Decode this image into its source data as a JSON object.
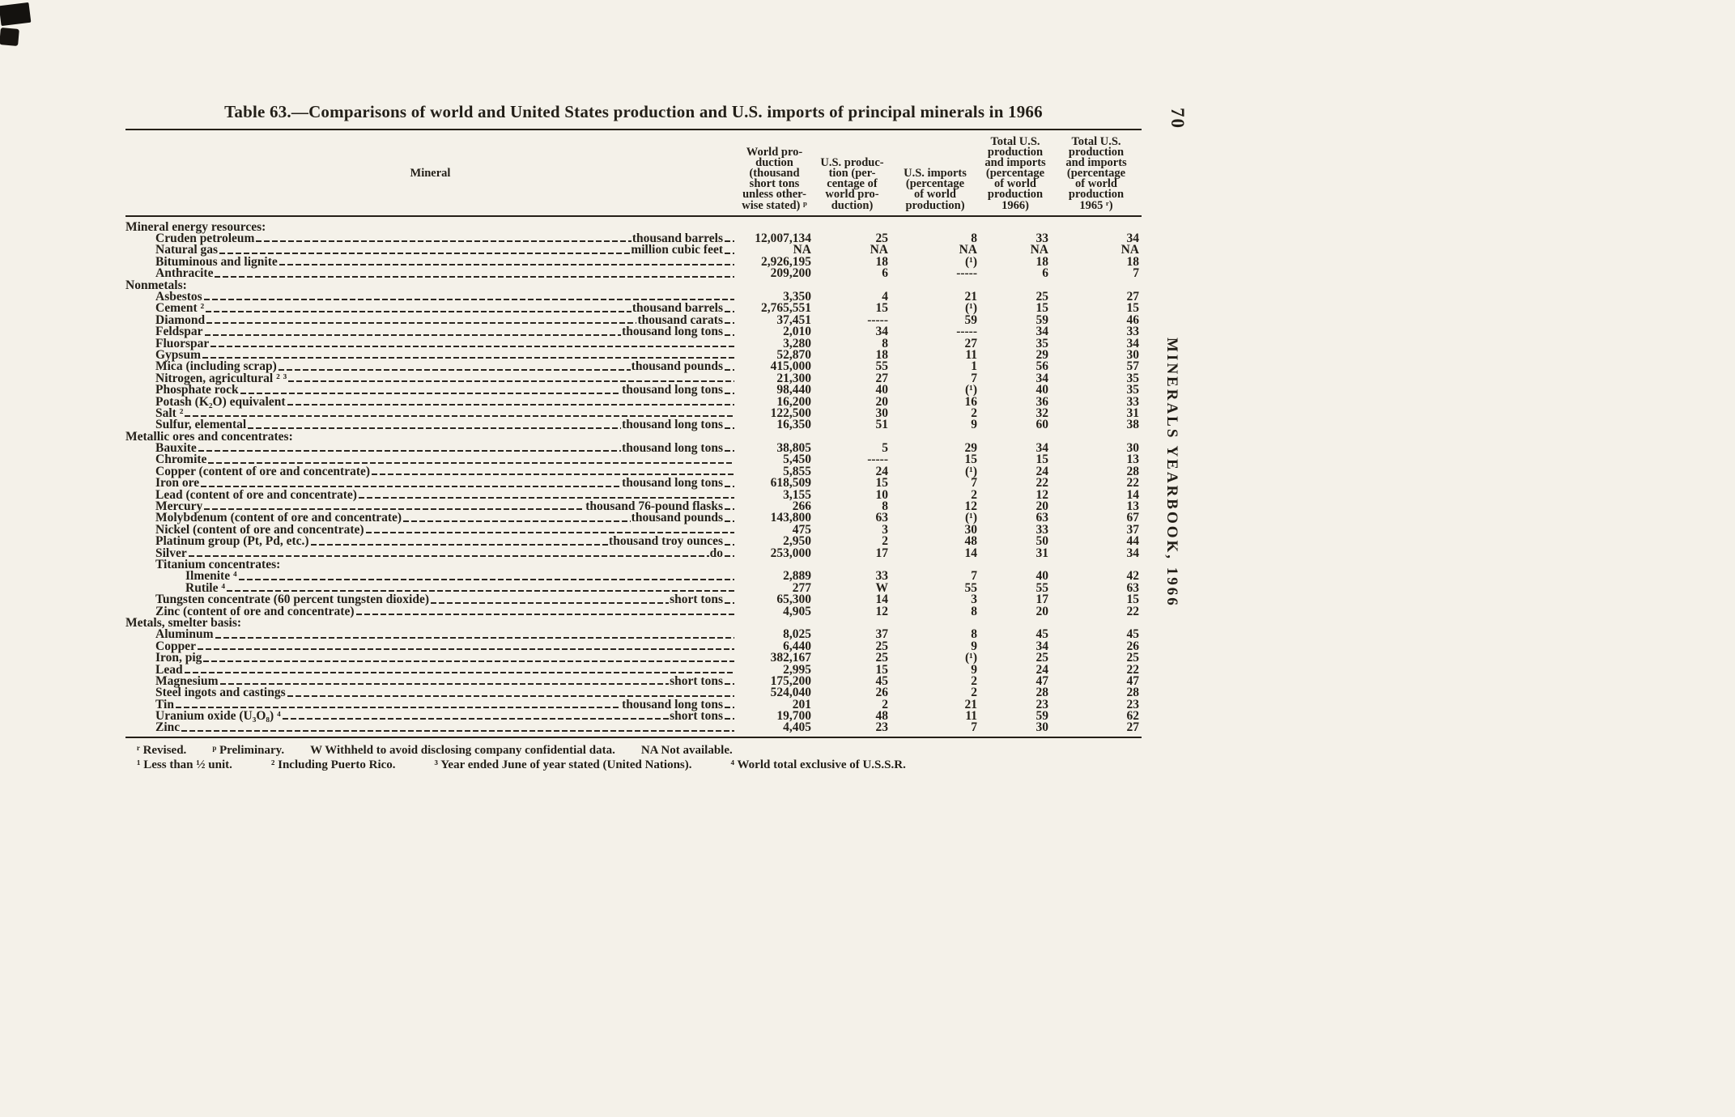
{
  "page": {
    "number": "70",
    "side_title": "MINERALS YEARBOOK, 1966"
  },
  "table": {
    "title": "Table 63.—Comparisons of world and United States production and U.S. imports of principal minerals in 1966",
    "headers": {
      "mineral": "Mineral",
      "world_production": "World pro-\nduction\n(thousand\nshort tons\nunless other-\nwise stated) ᵖ",
      "us_production": "U.S. produc-\ntion (per-\ncentage of\nworld pro-\nduction)",
      "us_imports": "U.S. imports\n(percentage\nof world\nproduction)",
      "total_1966": "Total U.S.\nproduction\nand imports\n(percentage\nof world\nproduction\n1966)",
      "total_1965": "Total U.S.\nproduction\nand imports\n(percentage\nof world\nproduction\n1965 ʳ)"
    },
    "rows": [
      {
        "type": "section",
        "indent": 0,
        "label": "Mineral energy resources:"
      },
      {
        "type": "row",
        "indent": 1,
        "mineral": "Cruden petroleum",
        "unit": "thousand barrels",
        "values": [
          "12,007,134",
          "25",
          "8",
          "33",
          "34"
        ]
      },
      {
        "type": "row",
        "indent": 1,
        "mineral": "Natural gas",
        "unit": "million cubic feet",
        "values": [
          "NA",
          "NA",
          "NA",
          "NA",
          "NA"
        ]
      },
      {
        "type": "row",
        "indent": 1,
        "mineral": "Bituminous and lignite",
        "unit": "",
        "values": [
          "2,926,195",
          "18",
          "(¹)",
          "18",
          "18"
        ]
      },
      {
        "type": "row",
        "indent": 1,
        "mineral": "Anthracite",
        "unit": "",
        "values": [
          "209,200",
          "6",
          "-----",
          "6",
          "7"
        ]
      },
      {
        "type": "section",
        "indent": 0,
        "label": "Nonmetals:"
      },
      {
        "type": "row",
        "indent": 1,
        "mineral": "Asbestos",
        "unit": "",
        "values": [
          "3,350",
          "4",
          "21",
          "25",
          "27"
        ]
      },
      {
        "type": "row",
        "indent": 1,
        "mineral": "Cement ²",
        "unit": "thousand barrels",
        "values": [
          "2,765,551",
          "15",
          "(¹)",
          "15",
          "15"
        ]
      },
      {
        "type": "row",
        "indent": 1,
        "mineral": "Diamond",
        "unit": "thousand carats",
        "values": [
          "37,451",
          "-----",
          "59",
          "59",
          "46"
        ]
      },
      {
        "type": "row",
        "indent": 1,
        "mineral": "Feldspar",
        "unit": "thousand long tons",
        "values": [
          "2,010",
          "34",
          "-----",
          "34",
          "33"
        ]
      },
      {
        "type": "row",
        "indent": 1,
        "mineral": "Fluorspar",
        "unit": "",
        "values": [
          "3,280",
          "8",
          "27",
          "35",
          "34"
        ]
      },
      {
        "type": "row",
        "indent": 1,
        "mineral": "Gypsum",
        "unit": "",
        "values": [
          "52,870",
          "18",
          "11",
          "29",
          "30"
        ]
      },
      {
        "type": "row",
        "indent": 1,
        "mineral": "Mica (including scrap)",
        "unit": "thousand pounds",
        "values": [
          "415,000",
          "55",
          "1",
          "56",
          "57"
        ]
      },
      {
        "type": "row",
        "indent": 1,
        "mineral": "Nitrogen, agricultural ² ³",
        "unit": "",
        "values": [
          "21,300",
          "27",
          "7",
          "34",
          "35"
        ]
      },
      {
        "type": "row",
        "indent": 1,
        "mineral": "Phosphate rock",
        "unit": "thousand long tons",
        "values": [
          "98,440",
          "40",
          "(¹)",
          "40",
          "35"
        ]
      },
      {
        "type": "row",
        "indent": 1,
        "mineral": "Potash (K₂O) equivalent",
        "unit": "",
        "values": [
          "16,200",
          "20",
          "16",
          "36",
          "33"
        ]
      },
      {
        "type": "row",
        "indent": 1,
        "mineral": "Salt ²",
        "unit": "",
        "values": [
          "122,500",
          "30",
          "2",
          "32",
          "31"
        ]
      },
      {
        "type": "row",
        "indent": 1,
        "mineral": "Sulfur, elemental",
        "unit": "thousand long tons",
        "values": [
          "16,350",
          "51",
          "9",
          "60",
          "38"
        ]
      },
      {
        "type": "section",
        "indent": 0,
        "label": "Metallic ores and concentrates:"
      },
      {
        "type": "row",
        "indent": 1,
        "mineral": "Bauxite",
        "unit": "thousand long tons",
        "values": [
          "38,805",
          "5",
          "29",
          "34",
          "30"
        ]
      },
      {
        "type": "row",
        "indent": 1,
        "mineral": "Chromite",
        "unit": "",
        "values": [
          "5,450",
          "-----",
          "15",
          "15",
          "13"
        ]
      },
      {
        "type": "row",
        "indent": 1,
        "mineral": "Copper (content of ore and concentrate)",
        "unit": "",
        "values": [
          "5,855",
          "24",
          "(¹)",
          "24",
          "28"
        ]
      },
      {
        "type": "row",
        "indent": 1,
        "mineral": "Iron ore",
        "unit": "thousand long tons",
        "values": [
          "618,509",
          "15",
          "7",
          "22",
          "22"
        ]
      },
      {
        "type": "row",
        "indent": 1,
        "mineral": "Lead (content of ore and concentrate)",
        "unit": "",
        "values": [
          "3,155",
          "10",
          "2",
          "12",
          "14"
        ]
      },
      {
        "type": "row",
        "indent": 1,
        "mineral": "Mercury",
        "unit": "thousand 76-pound flasks",
        "values": [
          "266",
          "8",
          "12",
          "20",
          "13"
        ]
      },
      {
        "type": "row",
        "indent": 1,
        "mineral": "Molybdenum (content of ore and concentrate)",
        "unit": "thousand pounds",
        "values": [
          "143,800",
          "63",
          "(¹)",
          "63",
          "67"
        ]
      },
      {
        "type": "row",
        "indent": 1,
        "mineral": "Nickel (content of ore and concentrate)",
        "unit": "",
        "values": [
          "475",
          "3",
          "30",
          "33",
          "37"
        ]
      },
      {
        "type": "row",
        "indent": 1,
        "mineral": "Platinum group (Pt, Pd, etc.)",
        "unit": "thousand troy ounces",
        "values": [
          "2,950",
          "2",
          "48",
          "50",
          "44"
        ]
      },
      {
        "type": "row",
        "indent": 1,
        "mineral": "Silver",
        "unit": "do",
        "values": [
          "253,000",
          "17",
          "14",
          "31",
          "34"
        ]
      },
      {
        "type": "section",
        "indent": 1,
        "label": "Titanium concentrates:"
      },
      {
        "type": "row",
        "indent": 2,
        "mineral": "Ilmenite ⁴",
        "unit": "",
        "values": [
          "2,889",
          "33",
          "7",
          "40",
          "42"
        ]
      },
      {
        "type": "row",
        "indent": 2,
        "mineral": "Rutile ⁴",
        "unit": "",
        "values": [
          "277",
          "W",
          "55",
          "55",
          "63"
        ]
      },
      {
        "type": "row",
        "indent": 1,
        "mineral": "Tungsten concentrate (60 percent tungsten dioxide)",
        "unit": "short tons",
        "values": [
          "65,300",
          "14",
          "3",
          "17",
          "15"
        ]
      },
      {
        "type": "row",
        "indent": 1,
        "mineral": "Zinc (content of ore and concentrate)",
        "unit": "",
        "values": [
          "4,905",
          "12",
          "8",
          "20",
          "22"
        ]
      },
      {
        "type": "section",
        "indent": 0,
        "label": "Metals, smelter basis:"
      },
      {
        "type": "row",
        "indent": 1,
        "mineral": "Aluminum",
        "unit": "",
        "values": [
          "8,025",
          "37",
          "8",
          "45",
          "45"
        ]
      },
      {
        "type": "row",
        "indent": 1,
        "mineral": "Copper",
        "unit": "",
        "values": [
          "6,440",
          "25",
          "9",
          "34",
          "26"
        ]
      },
      {
        "type": "row",
        "indent": 1,
        "mineral": "Iron, pig",
        "unit": "",
        "values": [
          "382,167",
          "25",
          "(¹)",
          "25",
          "25"
        ]
      },
      {
        "type": "row",
        "indent": 1,
        "mineral": "Lead",
        "unit": "",
        "values": [
          "2,995",
          "15",
          "9",
          "24",
          "22"
        ]
      },
      {
        "type": "row",
        "indent": 1,
        "mineral": "Magnesium",
        "unit": "short tons",
        "values": [
          "175,200",
          "45",
          "2",
          "47",
          "47"
        ]
      },
      {
        "type": "row",
        "indent": 1,
        "mineral": "Steel ingots and castings",
        "unit": "",
        "values": [
          "524,040",
          "26",
          "2",
          "28",
          "28"
        ]
      },
      {
        "type": "row",
        "indent": 1,
        "mineral": "Tin",
        "unit": "thousand long tons",
        "values": [
          "201",
          "2",
          "21",
          "23",
          "23"
        ]
      },
      {
        "type": "row",
        "indent": 1,
        "mineral": "Uranium oxide (U₃O₈) ⁴",
        "unit": "short tons",
        "values": [
          "19,700",
          "48",
          "11",
          "59",
          "62"
        ]
      },
      {
        "type": "row",
        "indent": 1,
        "mineral": "Zinc",
        "unit": "",
        "values": [
          "4,405",
          "23",
          "7",
          "30",
          "27"
        ]
      }
    ],
    "footnotes": [
      [
        "ʳ Revised.",
        "ᵖ Preliminary.",
        "W Withheld to avoid disclosing company confidential data.",
        "NA Not available."
      ],
      [
        "¹ Less than ½ unit.",
        "² Including Puerto Rico.",
        "³ Year ended June of year stated (United Nations).",
        "⁴ World total exclusive of U.S.S.R."
      ]
    ]
  }
}
